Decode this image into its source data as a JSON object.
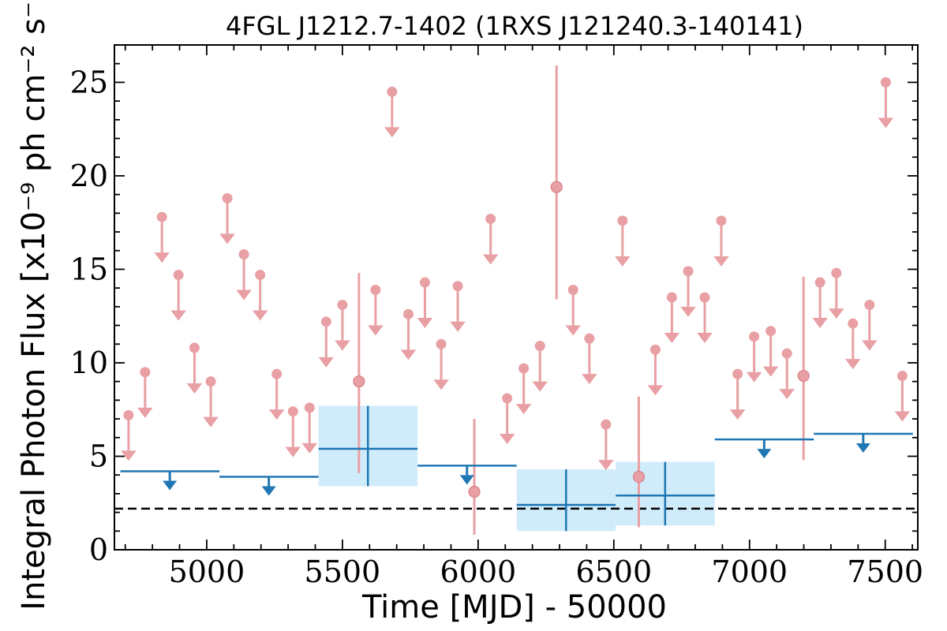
{
  "chart_data": {
    "type": "scatter",
    "title": "4FGL J1212.7-1402 (1RXS J121240.3-140141)",
    "xlabel": "Time [MJD] - 50000",
    "ylabel": "Integral Photon Flux [x10⁻⁹ ph cm⁻² s⁻¹]",
    "xlim": [
      4660,
      7620
    ],
    "ylim": [
      0,
      27
    ],
    "xticks": [
      5000,
      5500,
      6000,
      6500,
      7000,
      7500
    ],
    "yticks": [
      0,
      5,
      10,
      15,
      20,
      25
    ],
    "grid": false,
    "legend": "none",
    "reference_line": 2.2,
    "series": [
      {
        "kind": "short-bin upper limits",
        "color": "#e8a0a4",
        "points": [
          {
            "x": 4712,
            "y": 7.2
          },
          {
            "x": 4773,
            "y": 9.5
          },
          {
            "x": 4835,
            "y": 17.8
          },
          {
            "x": 4896,
            "y": 14.7
          },
          {
            "x": 4955,
            "y": 10.8
          },
          {
            "x": 5015,
            "y": 9.0
          },
          {
            "x": 5076,
            "y": 18.8
          },
          {
            "x": 5137,
            "y": 15.8
          },
          {
            "x": 5197,
            "y": 14.7
          },
          {
            "x": 5258,
            "y": 9.4
          },
          {
            "x": 5318,
            "y": 7.4
          },
          {
            "x": 5379,
            "y": 7.6
          },
          {
            "x": 5440,
            "y": 12.2
          },
          {
            "x": 5500,
            "y": 13.1
          },
          {
            "x": 5622,
            "y": 13.9
          },
          {
            "x": 5683,
            "y": 24.5
          },
          {
            "x": 5743,
            "y": 12.6
          },
          {
            "x": 5804,
            "y": 14.3
          },
          {
            "x": 5864,
            "y": 11.0
          },
          {
            "x": 5925,
            "y": 14.1
          },
          {
            "x": 6046,
            "y": 17.7
          },
          {
            "x": 6107,
            "y": 8.1
          },
          {
            "x": 6168,
            "y": 9.7
          },
          {
            "x": 6228,
            "y": 10.9
          },
          {
            "x": 6350,
            "y": 13.9
          },
          {
            "x": 6410,
            "y": 11.3
          },
          {
            "x": 6471,
            "y": 6.7
          },
          {
            "x": 6532,
            "y": 17.6
          },
          {
            "x": 6653,
            "y": 10.7
          },
          {
            "x": 6714,
            "y": 13.5
          },
          {
            "x": 6774,
            "y": 14.9
          },
          {
            "x": 6835,
            "y": 13.5
          },
          {
            "x": 6896,
            "y": 17.6
          },
          {
            "x": 6956,
            "y": 9.4
          },
          {
            "x": 7017,
            "y": 11.4
          },
          {
            "x": 7078,
            "y": 11.7
          },
          {
            "x": 7138,
            "y": 10.5
          },
          {
            "x": 7260,
            "y": 14.3
          },
          {
            "x": 7320,
            "y": 14.8
          },
          {
            "x": 7381,
            "y": 12.1
          },
          {
            "x": 7442,
            "y": 13.1
          },
          {
            "x": 7502,
            "y": 25.0
          },
          {
            "x": 7563,
            "y": 9.3
          }
        ]
      },
      {
        "kind": "short-bin detections",
        "color": "#e8a0a4",
        "points": [
          {
            "x": 5561,
            "y": 9.0,
            "ylo": 4.1,
            "yhi": 14.8
          },
          {
            "x": 5986,
            "y": 3.1,
            "ylo": 0.8,
            "yhi": 7.0
          },
          {
            "x": 6289,
            "y": 19.4,
            "ylo": 13.4,
            "yhi": 25.9
          },
          {
            "x": 6592,
            "y": 3.9,
            "ylo": 1.2,
            "yhi": 8.2
          },
          {
            "x": 7199,
            "y": 9.3,
            "ylo": 4.8,
            "yhi": 14.6
          }
        ]
      },
      {
        "kind": "long-bin upper limits",
        "color": "#1f77b4",
        "points": [
          {
            "x": 4864,
            "y": 4.2,
            "x0": 4682,
            "x1": 5047
          },
          {
            "x": 5229,
            "y": 3.9,
            "x0": 5047,
            "x1": 5412
          },
          {
            "x": 5959,
            "y": 4.5,
            "x0": 5777,
            "x1": 6142
          },
          {
            "x": 7054,
            "y": 5.9,
            "x0": 6872,
            "x1": 7237
          },
          {
            "x": 7419,
            "y": 6.2,
            "x0": 7237,
            "x1": 7602
          }
        ]
      },
      {
        "kind": "long-bin detections",
        "color": "#1f77b4",
        "band_color": "#d0ecfb",
        "points": [
          {
            "x": 5594,
            "y": 5.4,
            "x0": 5412,
            "x1": 5777,
            "ylo": 3.4,
            "yhi": 7.7
          },
          {
            "x": 6324,
            "y": 2.4,
            "x0": 6142,
            "x1": 6507,
            "ylo": 1.0,
            "yhi": 4.3
          },
          {
            "x": 6689,
            "y": 2.9,
            "x0": 6507,
            "x1": 6872,
            "ylo": 1.3,
            "yhi": 4.7
          }
        ]
      }
    ]
  }
}
